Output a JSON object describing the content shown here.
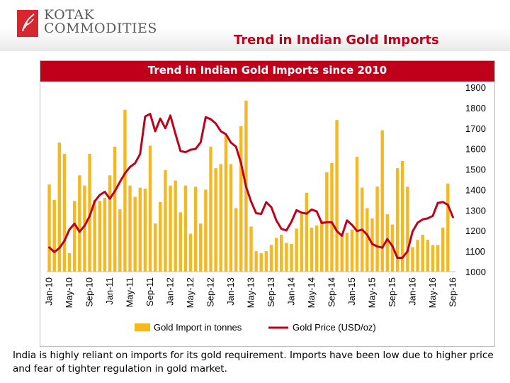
{
  "header": {
    "logo_line1": "KOTAK",
    "logo_line2": "COMMODITIES",
    "slide_title": "Trend in Indian Gold Imports"
  },
  "caption": "India is highly reliant on imports for its gold requirement. Imports have been low due to higher price and fear of tighter regulation in gold market.",
  "colors": {
    "bar": "#f5b81f",
    "line": "#c0001a",
    "title_band": "#c0001a"
  },
  "icons": {
    "logo": "leaf-logo-icon"
  },
  "chart_data": {
    "type": "bar",
    "title": "Trend in Indian Gold Imports since 2010",
    "x_tick_labels": [
      "Jan-10",
      "May-10",
      "Sep-10",
      "Jan-11",
      "May-11",
      "Sep-11",
      "Jan-12",
      "May-12",
      "Sep-12",
      "Jan-13",
      "May-13",
      "Sep-13",
      "Jan-14",
      "May-14",
      "Sep-14",
      "Jan-15",
      "May-15",
      "Sep-15",
      "Jan-16",
      "May-16",
      "Sep-16"
    ],
    "y_left": {
      "min": 0,
      "max": 180,
      "ticks": [
        0,
        20,
        40,
        60,
        80,
        100,
        120,
        140,
        160,
        180
      ]
    },
    "y_right": {
      "min": 1000,
      "max": 1900,
      "ticks": [
        1000,
        1100,
        1200,
        1300,
        1400,
        1500,
        1600,
        1700,
        1800,
        1900
      ]
    },
    "legend": {
      "position": "bottom"
    },
    "series": [
      {
        "name": "Gold Import in tonnes",
        "kind": "bar",
        "axis": "left",
        "values": [
          85,
          70,
          126,
          115,
          18,
          69,
          94,
          84,
          115,
          70,
          69,
          72,
          94,
          122,
          61,
          158,
          84,
          73,
          82,
          81,
          123,
          47,
          68,
          99,
          84,
          89,
          58,
          84,
          37,
          83,
          47,
          80,
          122,
          101,
          105,
          133,
          105,
          62,
          142,
          167,
          44,
          20,
          18,
          20,
          26,
          33,
          36,
          28,
          27,
          42,
          57,
          77,
          43,
          45,
          50,
          97,
          106,
          148,
          37,
          38,
          41,
          112,
          82,
          62,
          52,
          83,
          138,
          56,
          46,
          101,
          108,
          83,
          24,
          31,
          36,
          31,
          26,
          26,
          43,
          86
        ]
      },
      {
        "name": "Gold Price (USD/oz)",
        "kind": "line",
        "axis": "right",
        "values": [
          1118,
          1096,
          1115,
          1150,
          1206,
          1234,
          1195,
          1224,
          1271,
          1343,
          1374,
          1390,
          1356,
          1393,
          1438,
          1480,
          1511,
          1529,
          1574,
          1757,
          1770,
          1685,
          1747,
          1700,
          1762,
          1673,
          1589,
          1583,
          1595,
          1599,
          1631,
          1754,
          1744,
          1723,
          1685,
          1671,
          1630,
          1610,
          1530,
          1414,
          1342,
          1285,
          1282,
          1339,
          1315,
          1250,
          1209,
          1201,
          1244,
          1300,
          1288,
          1283,
          1303,
          1294,
          1237,
          1241,
          1241,
          1198,
          1175,
          1250,
          1228,
          1198,
          1205,
          1180,
          1135,
          1123,
          1117,
          1159,
          1125,
          1067,
          1068,
          1099,
          1196,
          1239,
          1255,
          1260,
          1272,
          1335,
          1340,
          1326,
          1266
        ]
      }
    ]
  }
}
